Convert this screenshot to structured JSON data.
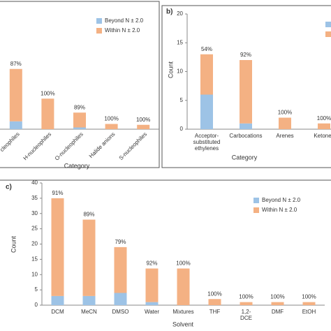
{
  "chart_data": [
    {
      "type": "bar",
      "stacked": true,
      "xlabel": "Category",
      "categories": [
        "cleophiles",
        "H-nucleophiles",
        "O-nucleophiles",
        "Halide anions",
        "S-nucleophiles"
      ],
      "series": [
        {
          "name": "Beyond N ± 2.0",
          "color": "#9dc3e6",
          "values": [
            9,
            0,
            2,
            0,
            0
          ]
        },
        {
          "name": "Within N ± 2.0",
          "color": "#f4b183",
          "values": [
            60,
            35,
            17,
            6,
            5
          ]
        }
      ],
      "annotations": [
        "87%",
        "100%",
        "89%",
        "100%",
        "100%"
      ],
      "ylim": [
        0,
        140
      ]
    },
    {
      "type": "bar",
      "stacked": true,
      "panel": "b)",
      "xlabel": "Category",
      "ylabel": "Count",
      "categories": [
        "Acceptor-substituted ethylenes",
        "Carbocations",
        "Arenes",
        "Ketones"
      ],
      "series": [
        {
          "color": "#9dc3e6",
          "values": [
            6,
            1,
            0,
            0
          ]
        },
        {
          "color": "#f4b183",
          "values": [
            7,
            11,
            2,
            1
          ]
        }
      ],
      "annotations": [
        "54%",
        "92%",
        "100%",
        "100%"
      ],
      "ylim": [
        0,
        20
      ],
      "yticks": [
        0,
        5,
        10,
        15,
        20
      ]
    },
    {
      "type": "bar",
      "stacked": true,
      "panel": "c)",
      "xlabel": "Solvent",
      "ylabel": "Count",
      "categories": [
        "DCM",
        "MeCN",
        "DMSO",
        "Water",
        "Mixtures",
        "THF",
        "1,2-DCE",
        "DMF",
        "EtOH"
      ],
      "series": [
        {
          "name": "Beyond N ± 2.0",
          "color": "#9dc3e6",
          "values": [
            3,
            3,
            4,
            1,
            0,
            0,
            0,
            0,
            0
          ]
        },
        {
          "name": "Within N ± 2.0",
          "color": "#f4b183",
          "values": [
            32,
            25,
            15,
            11,
            12,
            2,
            1,
            1,
            1
          ]
        }
      ],
      "annotations": [
        "91%",
        "89%",
        "79%",
        "92%",
        "100%",
        "100%",
        "100%",
        "100%",
        "100%"
      ],
      "ylim": [
        0,
        40
      ],
      "yticks": [
        0,
        5,
        10,
        15,
        20,
        25,
        30,
        35,
        40
      ]
    }
  ]
}
